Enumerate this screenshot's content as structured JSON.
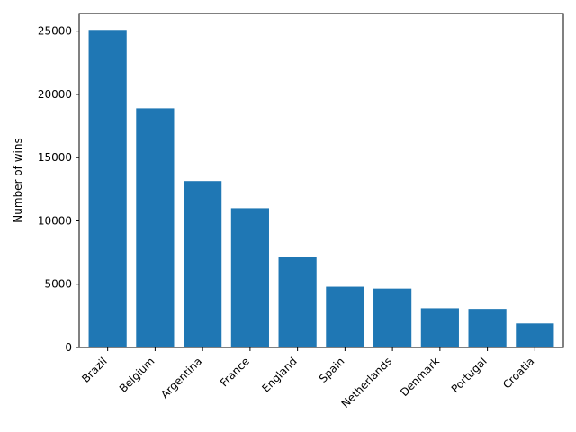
{
  "chart_data": {
    "type": "bar",
    "title": "",
    "xlabel": "",
    "ylabel": "Number of wins",
    "categories": [
      "Brazil",
      "Belgium",
      "Argentina",
      "France",
      "England",
      "Spain",
      "Netherlands",
      "Denmark",
      "Portugal",
      "Croatia"
    ],
    "values": [
      25100,
      18900,
      13150,
      11000,
      7150,
      4800,
      4650,
      3100,
      3050,
      1900
    ],
    "ylim": [
      0,
      26400
    ],
    "yticks": [
      0,
      5000,
      10000,
      15000,
      20000,
      25000
    ],
    "bar_color": "#1f77b4",
    "grid": false
  }
}
